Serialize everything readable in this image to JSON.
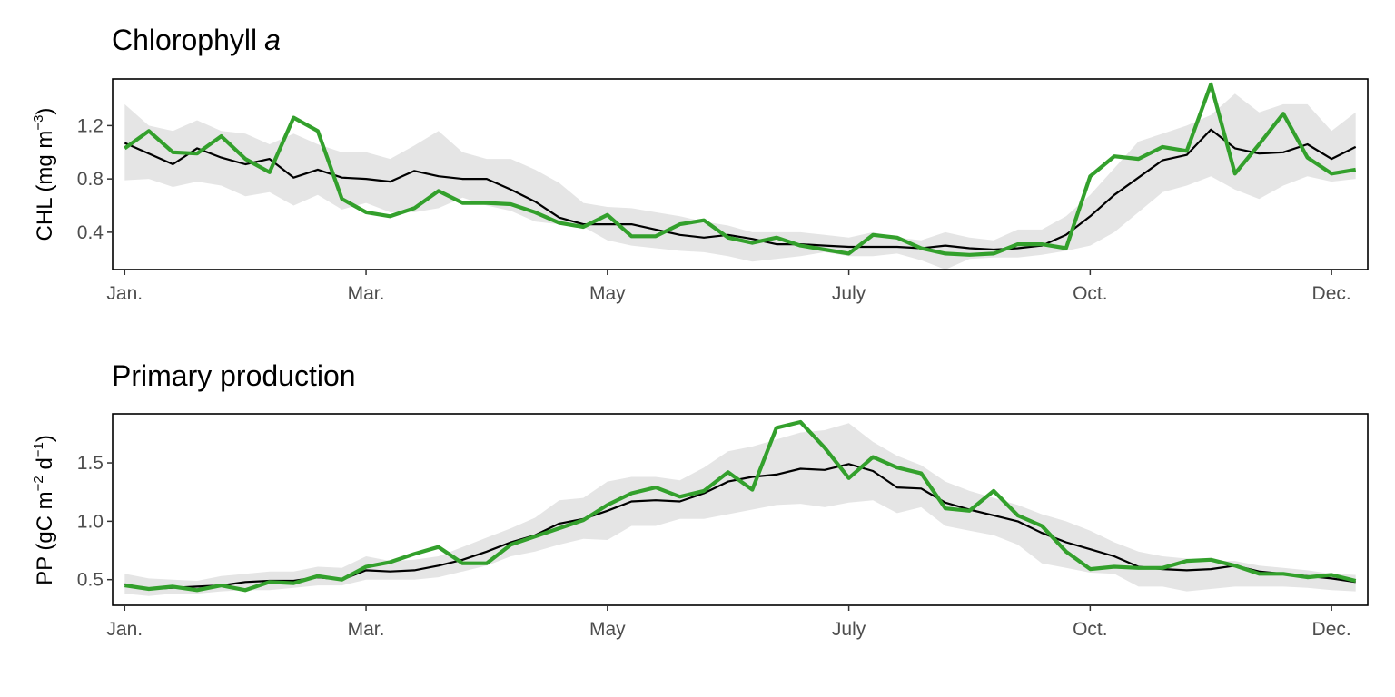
{
  "colors": {
    "observed": "#33a02c",
    "climatology": "#000000",
    "band": "#e5e5e5"
  },
  "chart_data": [
    {
      "type": "line",
      "title": "Chlorophyll",
      "title_suffix": "a",
      "ylabel": {
        "main": "CHL (mg m",
        "sup": "−3",
        "close": ")"
      },
      "x_unit": "week of year",
      "xlim": [
        0.5,
        52.5
      ],
      "ylim": [
        0.12,
        1.55
      ],
      "x_ticks": [
        {
          "label": "Jan.",
          "x": 1
        },
        {
          "label": "Mar.",
          "x": 11
        },
        {
          "label": "May",
          "x": 21
        },
        {
          "label": "July",
          "x": 31
        },
        {
          "label": "Oct.",
          "x": 41
        },
        {
          "label": "Dec.",
          "x": 51
        }
      ],
      "y_ticks": [
        {
          "label": "0.4",
          "value": 0.4
        },
        {
          "label": "0.8",
          "value": 0.8
        },
        {
          "label": "1.2",
          "value": 1.2
        }
      ],
      "x": [
        1,
        2,
        3,
        4,
        5,
        6,
        7,
        8,
        9,
        10,
        11,
        12,
        13,
        14,
        15,
        16,
        17,
        18,
        19,
        20,
        21,
        22,
        23,
        24,
        25,
        26,
        27,
        28,
        29,
        30,
        31,
        32,
        33,
        34,
        35,
        36,
        37,
        38,
        39,
        40,
        41,
        42,
        43,
        44,
        45,
        46,
        47,
        48,
        49,
        50,
        51,
        52
      ],
      "series": [
        {
          "role": "band",
          "lower": [
            0.79,
            0.8,
            0.74,
            0.78,
            0.75,
            0.67,
            0.7,
            0.6,
            0.68,
            0.57,
            0.62,
            0.55,
            0.55,
            0.58,
            0.66,
            0.6,
            0.56,
            0.48,
            0.46,
            0.44,
            0.34,
            0.3,
            0.28,
            0.26,
            0.25,
            0.22,
            0.18,
            0.2,
            0.22,
            0.25,
            0.22,
            0.22,
            0.24,
            0.19,
            0.12,
            0.2,
            0.21,
            0.21,
            0.23,
            0.26,
            0.3,
            0.4,
            0.55,
            0.7,
            0.75,
            0.82,
            0.72,
            0.65,
            0.75,
            0.82,
            0.78,
            0.8
          ],
          "upper": [
            1.36,
            1.2,
            1.16,
            1.24,
            1.16,
            1.14,
            1.06,
            1.14,
            1.06,
            1.0,
            1.0,
            0.95,
            1.05,
            1.16,
            1.0,
            0.95,
            0.95,
            0.87,
            0.77,
            0.62,
            0.59,
            0.58,
            0.55,
            0.52,
            0.48,
            0.45,
            0.4,
            0.4,
            0.4,
            0.38,
            0.36,
            0.4,
            0.36,
            0.34,
            0.4,
            0.36,
            0.34,
            0.42,
            0.42,
            0.52,
            0.68,
            0.88,
            1.08,
            1.14,
            1.2,
            1.28,
            1.44,
            1.3,
            1.36,
            1.36,
            1.16,
            1.3
          ]
        },
        {
          "role": "climatology",
          "values": [
            1.07,
            0.99,
            0.91,
            1.03,
            0.96,
            0.91,
            0.95,
            0.81,
            0.87,
            0.81,
            0.8,
            0.78,
            0.86,
            0.82,
            0.8,
            0.8,
            0.72,
            0.63,
            0.51,
            0.46,
            0.46,
            0.46,
            0.42,
            0.38,
            0.36,
            0.38,
            0.35,
            0.31,
            0.31,
            0.3,
            0.29,
            0.29,
            0.29,
            0.28,
            0.3,
            0.28,
            0.27,
            0.28,
            0.3,
            0.38,
            0.52,
            0.68,
            0.81,
            0.94,
            0.98,
            1.17,
            1.03,
            0.99,
            1.0,
            1.06,
            0.95,
            1.04
          ]
        },
        {
          "role": "observed",
          "values": [
            1.03,
            1.16,
            1.0,
            0.99,
            1.12,
            0.95,
            0.85,
            1.26,
            1.16,
            0.65,
            0.55,
            0.52,
            0.58,
            0.71,
            0.62,
            0.62,
            0.61,
            0.55,
            0.47,
            0.44,
            0.53,
            0.37,
            0.37,
            0.46,
            0.49,
            0.36,
            0.32,
            0.36,
            0.3,
            0.27,
            0.24,
            0.38,
            0.36,
            0.28,
            0.24,
            0.23,
            0.24,
            0.31,
            0.31,
            0.28,
            0.82,
            0.97,
            0.95,
            1.04,
            1.01,
            1.51,
            0.84,
            1.06,
            1.29,
            0.96,
            0.84,
            0.87
          ]
        }
      ]
    },
    {
      "type": "line",
      "title": "Primary production",
      "ylabel": {
        "main": "PP (gC m",
        "sup1": "−2",
        "mid": " d",
        "sup2": "−1",
        "close": ")"
      },
      "x_unit": "week of year",
      "xlim": [
        0.5,
        52.5
      ],
      "ylim": [
        0.28,
        1.92
      ],
      "x_ticks": [
        {
          "label": "Jan.",
          "x": 1
        },
        {
          "label": "Mar.",
          "x": 11
        },
        {
          "label": "May",
          "x": 21
        },
        {
          "label": "July",
          "x": 31
        },
        {
          "label": "Oct.",
          "x": 41
        },
        {
          "label": "Dec.",
          "x": 51
        }
      ],
      "y_ticks": [
        {
          "label": "0.5",
          "value": 0.5
        },
        {
          "label": "1.0",
          "value": 1.0
        },
        {
          "label": "1.5",
          "value": 1.5
        }
      ],
      "x": [
        1,
        2,
        3,
        4,
        5,
        6,
        7,
        8,
        9,
        10,
        11,
        12,
        13,
        14,
        15,
        16,
        17,
        18,
        19,
        20,
        21,
        22,
        23,
        24,
        25,
        26,
        27,
        28,
        29,
        30,
        31,
        32,
        33,
        34,
        35,
        36,
        37,
        38,
        39,
        40,
        41,
        42,
        43,
        44,
        45,
        46,
        47,
        48,
        49,
        50,
        51,
        52
      ],
      "series": [
        {
          "role": "band",
          "lower": [
            0.38,
            0.36,
            0.38,
            0.38,
            0.4,
            0.41,
            0.41,
            0.43,
            0.45,
            0.45,
            0.5,
            0.5,
            0.5,
            0.52,
            0.57,
            0.62,
            0.7,
            0.74,
            0.8,
            0.85,
            0.84,
            0.96,
            0.96,
            1.02,
            1.02,
            1.06,
            1.1,
            1.14,
            1.15,
            1.12,
            1.16,
            1.18,
            1.07,
            1.12,
            0.96,
            0.92,
            0.88,
            0.8,
            0.64,
            0.6,
            0.56,
            0.55,
            0.44,
            0.44,
            0.4,
            0.42,
            0.44,
            0.44,
            0.44,
            0.43,
            0.41,
            0.4
          ],
          "upper": [
            0.55,
            0.51,
            0.5,
            0.49,
            0.53,
            0.55,
            0.57,
            0.57,
            0.61,
            0.6,
            0.7,
            0.66,
            0.67,
            0.7,
            0.78,
            0.86,
            0.94,
            1.03,
            1.18,
            1.2,
            1.34,
            1.38,
            1.38,
            1.35,
            1.46,
            1.6,
            1.64,
            1.7,
            1.76,
            1.78,
            1.84,
            1.68,
            1.56,
            1.48,
            1.34,
            1.26,
            1.2,
            1.14,
            1.06,
            1.0,
            0.92,
            0.82,
            0.74,
            0.7,
            0.68,
            0.66,
            0.66,
            0.62,
            0.6,
            0.58,
            0.55,
            0.54
          ]
        },
        {
          "role": "climatology",
          "values": [
            0.46,
            0.42,
            0.43,
            0.44,
            0.45,
            0.48,
            0.49,
            0.49,
            0.52,
            0.5,
            0.58,
            0.57,
            0.58,
            0.62,
            0.67,
            0.74,
            0.82,
            0.88,
            0.98,
            1.02,
            1.09,
            1.17,
            1.18,
            1.17,
            1.24,
            1.34,
            1.38,
            1.4,
            1.45,
            1.44,
            1.49,
            1.43,
            1.29,
            1.28,
            1.16,
            1.1,
            1.05,
            1.0,
            0.9,
            0.82,
            0.76,
            0.7,
            0.61,
            0.59,
            0.58,
            0.59,
            0.62,
            0.57,
            0.55,
            0.53,
            0.51,
            0.48
          ]
        },
        {
          "role": "observed",
          "values": [
            0.45,
            0.42,
            0.44,
            0.41,
            0.45,
            0.41,
            0.48,
            0.47,
            0.53,
            0.5,
            0.61,
            0.65,
            0.72,
            0.78,
            0.64,
            0.64,
            0.8,
            0.87,
            0.94,
            1.01,
            1.14,
            1.24,
            1.29,
            1.21,
            1.26,
            1.42,
            1.27,
            1.8,
            1.85,
            1.63,
            1.37,
            1.55,
            1.46,
            1.41,
            1.11,
            1.09,
            1.26,
            1.05,
            0.96,
            0.74,
            0.59,
            0.61,
            0.6,
            0.6,
            0.66,
            0.67,
            0.62,
            0.55,
            0.55,
            0.52,
            0.54,
            0.49
          ]
        }
      ]
    }
  ]
}
